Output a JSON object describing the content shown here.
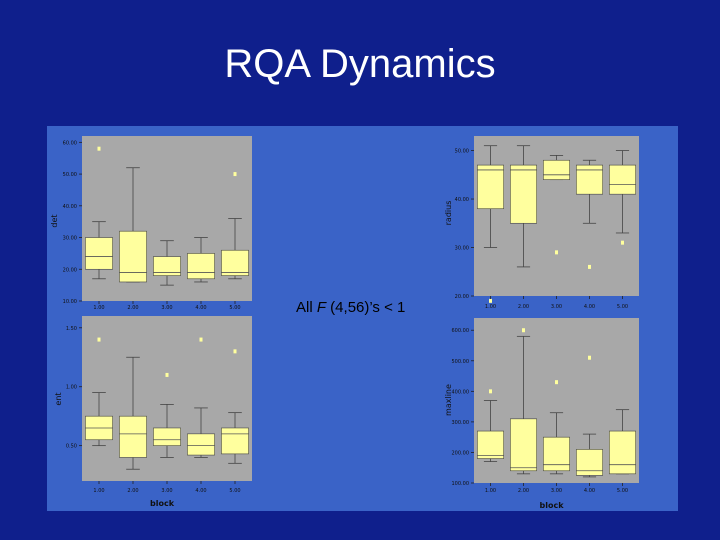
{
  "slide": {
    "title": "RQA Dynamics",
    "annotation": {
      "prefix": "All ",
      "stat": "F",
      "rest": " (4,56)’s < 1"
    }
  },
  "colors": {
    "background": "#0f1f8c",
    "panel": "#3a63c7",
    "plot": "#a8a8a8",
    "box": "#ffff9e",
    "text": "#ffffff"
  },
  "chart_data": [
    {
      "type": "box",
      "ylabel": "det",
      "xlabel": "",
      "categories": [
        "1.00",
        "2.00",
        "3.00",
        "4.00",
        "5.00"
      ],
      "yticks": [
        10,
        20,
        30,
        40,
        50,
        60
      ],
      "ytick_labels": [
        "10.00",
        "20.00",
        "30.00",
        "40.00",
        "50.00",
        "60.00"
      ],
      "ylim": [
        10,
        62
      ],
      "boxes": [
        {
          "whisker_low": 17,
          "q1": 20,
          "median": 24,
          "q3": 30,
          "whisker_high": 35,
          "outliers": [
            58
          ]
        },
        {
          "whisker_low": 16,
          "q1": 16,
          "median": 19,
          "q3": 32,
          "whisker_high": 52,
          "outliers": []
        },
        {
          "whisker_low": 15,
          "q1": 18,
          "median": 19,
          "q3": 24,
          "whisker_high": 29,
          "outliers": []
        },
        {
          "whisker_low": 16,
          "q1": 17,
          "median": 19,
          "q3": 25,
          "whisker_high": 30,
          "outliers": []
        },
        {
          "whisker_low": 17,
          "q1": 18,
          "median": 19,
          "q3": 26,
          "whisker_high": 36,
          "outliers": [
            50
          ]
        }
      ]
    },
    {
      "type": "box",
      "ylabel": "radius",
      "xlabel": "",
      "categories": [
        "1.00",
        "2.00",
        "3.00",
        "4.00",
        "5.00"
      ],
      "yticks": [
        20,
        30,
        40,
        50
      ],
      "ytick_labels": [
        "20.00",
        "30.00",
        "40.00",
        "50.00"
      ],
      "ylim": [
        20,
        53
      ],
      "boxes": [
        {
          "whisker_low": 30,
          "q1": 38,
          "median": 46,
          "q3": 47,
          "whisker_high": 51,
          "outliers": [
            19
          ]
        },
        {
          "whisker_low": 26,
          "q1": 35,
          "median": 46,
          "q3": 47,
          "whisker_high": 51,
          "outliers": []
        },
        {
          "whisker_low": 44,
          "q1": 44,
          "median": 45,
          "q3": 48,
          "whisker_high": 49,
          "outliers": [
            29
          ]
        },
        {
          "whisker_low": 35,
          "q1": 41,
          "median": 46,
          "q3": 47,
          "whisker_high": 48,
          "outliers": [
            26
          ]
        },
        {
          "whisker_low": 33,
          "q1": 41,
          "median": 43,
          "q3": 47,
          "whisker_high": 50,
          "outliers": [
            31
          ]
        }
      ]
    },
    {
      "type": "box",
      "ylabel": "ent",
      "xlabel": "block",
      "categories": [
        "1.00",
        "2.00",
        "3.00",
        "4.00",
        "5.00"
      ],
      "yticks": [
        0.5,
        1.0,
        1.5
      ],
      "ytick_labels": [
        "0.50",
        "1.00",
        "1.50"
      ],
      "ylim": [
        0.2,
        1.6
      ],
      "boxes": [
        {
          "whisker_low": 0.5,
          "q1": 0.55,
          "median": 0.65,
          "q3": 0.75,
          "whisker_high": 0.95,
          "outliers": [
            1.4
          ]
        },
        {
          "whisker_low": 0.3,
          "q1": 0.4,
          "median": 0.6,
          "q3": 0.75,
          "whisker_high": 1.25,
          "outliers": []
        },
        {
          "whisker_low": 0.4,
          "q1": 0.5,
          "median": 0.55,
          "q3": 0.65,
          "whisker_high": 0.85,
          "outliers": [
            1.1
          ]
        },
        {
          "whisker_low": 0.4,
          "q1": 0.42,
          "median": 0.5,
          "q3": 0.6,
          "whisker_high": 0.82,
          "outliers": [
            1.4
          ]
        },
        {
          "whisker_low": 0.35,
          "q1": 0.43,
          "median": 0.6,
          "q3": 0.65,
          "whisker_high": 0.78,
          "outliers": [
            1.3
          ]
        }
      ]
    },
    {
      "type": "box",
      "ylabel": "maxline",
      "xlabel": "block",
      "categories": [
        "1.00",
        "2.00",
        "3.00",
        "4.00",
        "5.00"
      ],
      "yticks": [
        100,
        200,
        300,
        400,
        500,
        600
      ],
      "ytick_labels": [
        "100.00",
        "200.00",
        "300.00",
        "400.00",
        "500.00",
        "600.00"
      ],
      "ylim": [
        100,
        640
      ],
      "boxes": [
        {
          "whisker_low": 170,
          "q1": 180,
          "median": 190,
          "q3": 270,
          "whisker_high": 370,
          "outliers": [
            400
          ]
        },
        {
          "whisker_low": 130,
          "q1": 140,
          "median": 150,
          "q3": 310,
          "whisker_high": 580,
          "outliers": [
            600
          ]
        },
        {
          "whisker_low": 130,
          "q1": 140,
          "median": 160,
          "q3": 250,
          "whisker_high": 330,
          "outliers": [
            430
          ]
        },
        {
          "whisker_low": 120,
          "q1": 125,
          "median": 140,
          "q3": 210,
          "whisker_high": 260,
          "outliers": [
            510
          ]
        },
        {
          "whisker_low": 130,
          "q1": 130,
          "median": 160,
          "q3": 270,
          "whisker_high": 340,
          "outliers": []
        }
      ]
    }
  ]
}
